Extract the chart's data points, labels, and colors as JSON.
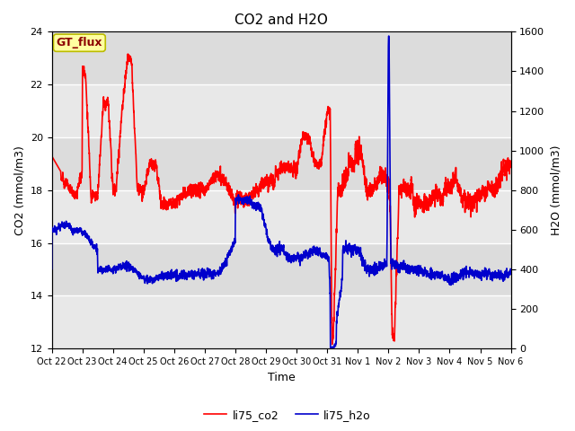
{
  "title": "CO2 and H2O",
  "xlabel": "Time",
  "ylabel_left": "CO2 (mmol/m3)",
  "ylabel_right": "H2O (mmol/m3)",
  "ylim_left": [
    12,
    24
  ],
  "ylim_right": [
    0,
    1600
  ],
  "yticks_left": [
    12,
    14,
    16,
    18,
    20,
    22,
    24
  ],
  "yticks_right": [
    0,
    200,
    400,
    600,
    800,
    1000,
    1200,
    1400,
    1600
  ],
  "xtick_labels": [
    "Oct 22",
    "Oct 23",
    "Oct 24",
    "Oct 25",
    "Oct 26",
    "Oct 27",
    "Oct 28",
    "Oct 29",
    "Oct 30",
    "Oct 31",
    "Nov 1",
    "Nov 2",
    "Nov 3",
    "Nov 4",
    "Nov 5",
    "Nov 6"
  ],
  "color_co2": "#FF0000",
  "color_h2o": "#0000CC",
  "legend_label_co2": "li75_co2",
  "legend_label_h2o": "li75_h2o",
  "annotation_text": "GT_flux",
  "bg_color": "#DCDCDC",
  "inner_band_color": "#E8E8E8",
  "linewidth": 1.2
}
